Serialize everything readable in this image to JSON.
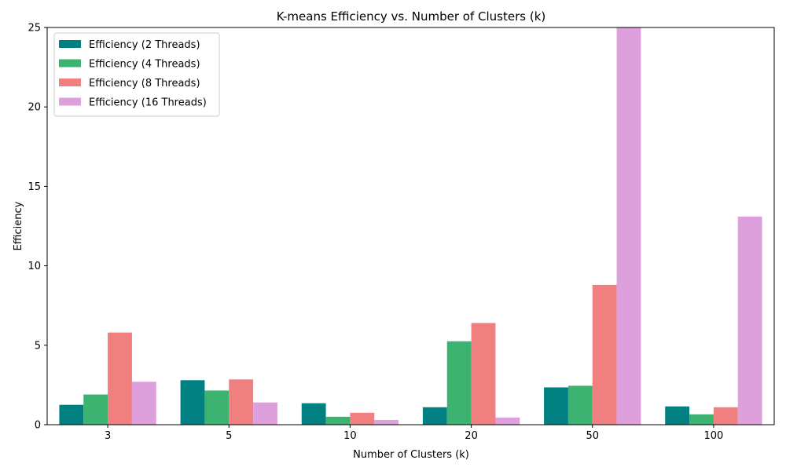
{
  "chart_data": {
    "type": "bar",
    "title": "K-means Efficiency vs. Number of Clusters (k)",
    "xlabel": "Number of Clusters (k)",
    "ylabel": "Efficiency",
    "categories": [
      "3",
      "5",
      "10",
      "20",
      "50",
      "100"
    ],
    "ylim": [
      0,
      25
    ],
    "yticks": [
      0,
      5,
      10,
      15,
      20,
      25
    ],
    "grid": false,
    "legend_position": "top-left",
    "series": [
      {
        "name": "Efficiency (2 Threads)",
        "color": "#008080",
        "values": [
          1.25,
          2.8,
          1.35,
          1.1,
          2.35,
          1.15
        ]
      },
      {
        "name": "Efficiency (4 Threads)",
        "color": "#3cb371",
        "values": [
          1.9,
          2.15,
          0.5,
          5.25,
          2.45,
          0.65
        ]
      },
      {
        "name": "Efficiency (8 Threads)",
        "color": "#f08080",
        "values": [
          5.8,
          2.85,
          0.75,
          6.4,
          8.8,
          1.1
        ]
      },
      {
        "name": "Efficiency (16 Threads)",
        "color": "#dda0dd",
        "values": [
          2.7,
          1.4,
          0.3,
          0.45,
          25,
          13.1
        ]
      }
    ]
  }
}
